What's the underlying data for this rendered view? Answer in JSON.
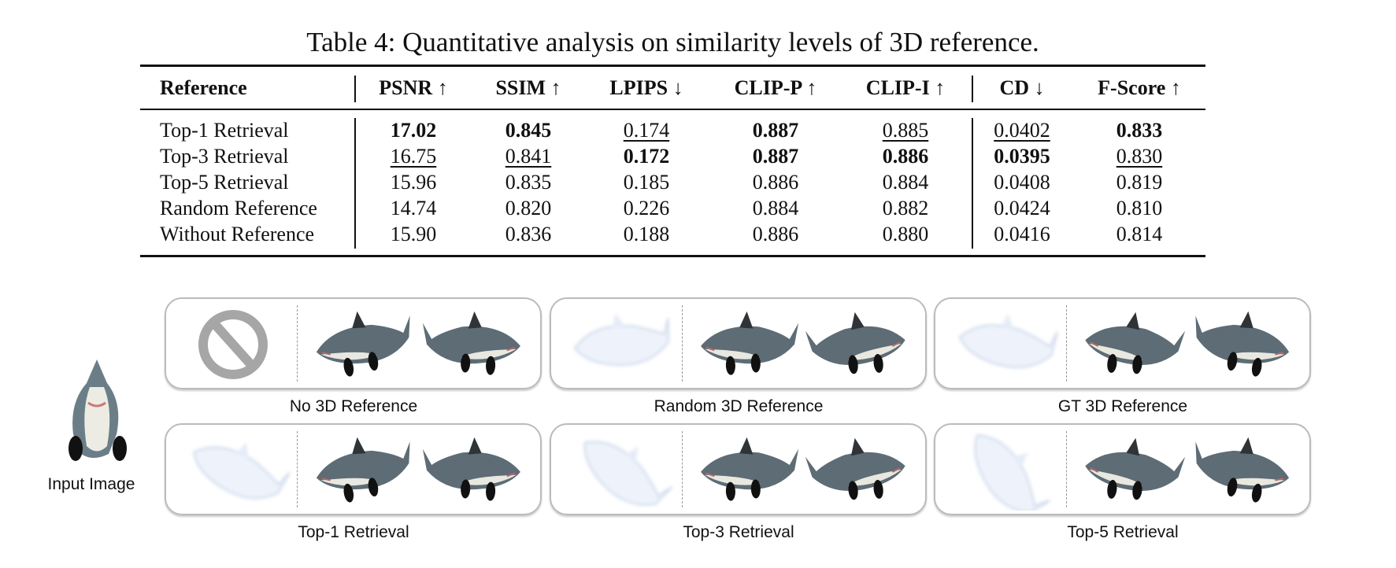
{
  "caption": "Table 4: Quantitative analysis on similarity levels of 3D reference.",
  "table": {
    "headers": [
      "Reference",
      "PSNR ↑",
      "SSIM ↑",
      "LPIPS ↓",
      "CLIP-P ↑",
      "CLIP-I ↑",
      "CD ↓",
      "F-Score ↑"
    ],
    "rows": [
      {
        "label": "Top-1 Retrieval",
        "values": [
          "17.02",
          "0.845",
          "0.174",
          "0.887",
          "0.885",
          "0.0402",
          "0.833"
        ],
        "style": [
          "b",
          "b",
          "u",
          "b",
          "u",
          "u",
          "b"
        ]
      },
      {
        "label": "Top-3 Retrieval",
        "values": [
          "16.75",
          "0.841",
          "0.172",
          "0.887",
          "0.886",
          "0.0395",
          "0.830"
        ],
        "style": [
          "u",
          "u",
          "b",
          "b",
          "b",
          "b",
          "u"
        ]
      },
      {
        "label": "Top-5 Retrieval",
        "values": [
          "15.96",
          "0.835",
          "0.185",
          "0.886",
          "0.884",
          "0.0408",
          "0.819"
        ],
        "style": [
          "",
          "",
          "",
          "",
          "",
          "",
          ""
        ]
      },
      {
        "label": "Random Reference",
        "values": [
          "14.74",
          "0.820",
          "0.226",
          "0.884",
          "0.882",
          "0.0424",
          "0.810"
        ],
        "style": [
          "",
          "",
          "",
          "",
          "",
          "",
          ""
        ]
      },
      {
        "label": "Without Reference",
        "values": [
          "15.90",
          "0.836",
          "0.188",
          "0.886",
          "0.880",
          "0.0416",
          "0.814"
        ],
        "style": [
          "",
          "",
          "",
          "",
          "",
          "",
          ""
        ]
      }
    ]
  },
  "figure": {
    "input_label": "Input Image",
    "panels": [
      {
        "label": "No 3D Reference",
        "reference": "no-reference-icon"
      },
      {
        "label": "Random 3D Reference",
        "reference": "random-mesh"
      },
      {
        "label": "GT 3D Reference",
        "reference": "gt-mesh"
      },
      {
        "label": "Top-1 Retrieval",
        "reference": "top1-mesh"
      },
      {
        "label": "Top-3 Retrieval",
        "reference": "top3-mesh"
      },
      {
        "label": "Top-5 Retrieval",
        "reference": "top5-mesh"
      }
    ]
  }
}
